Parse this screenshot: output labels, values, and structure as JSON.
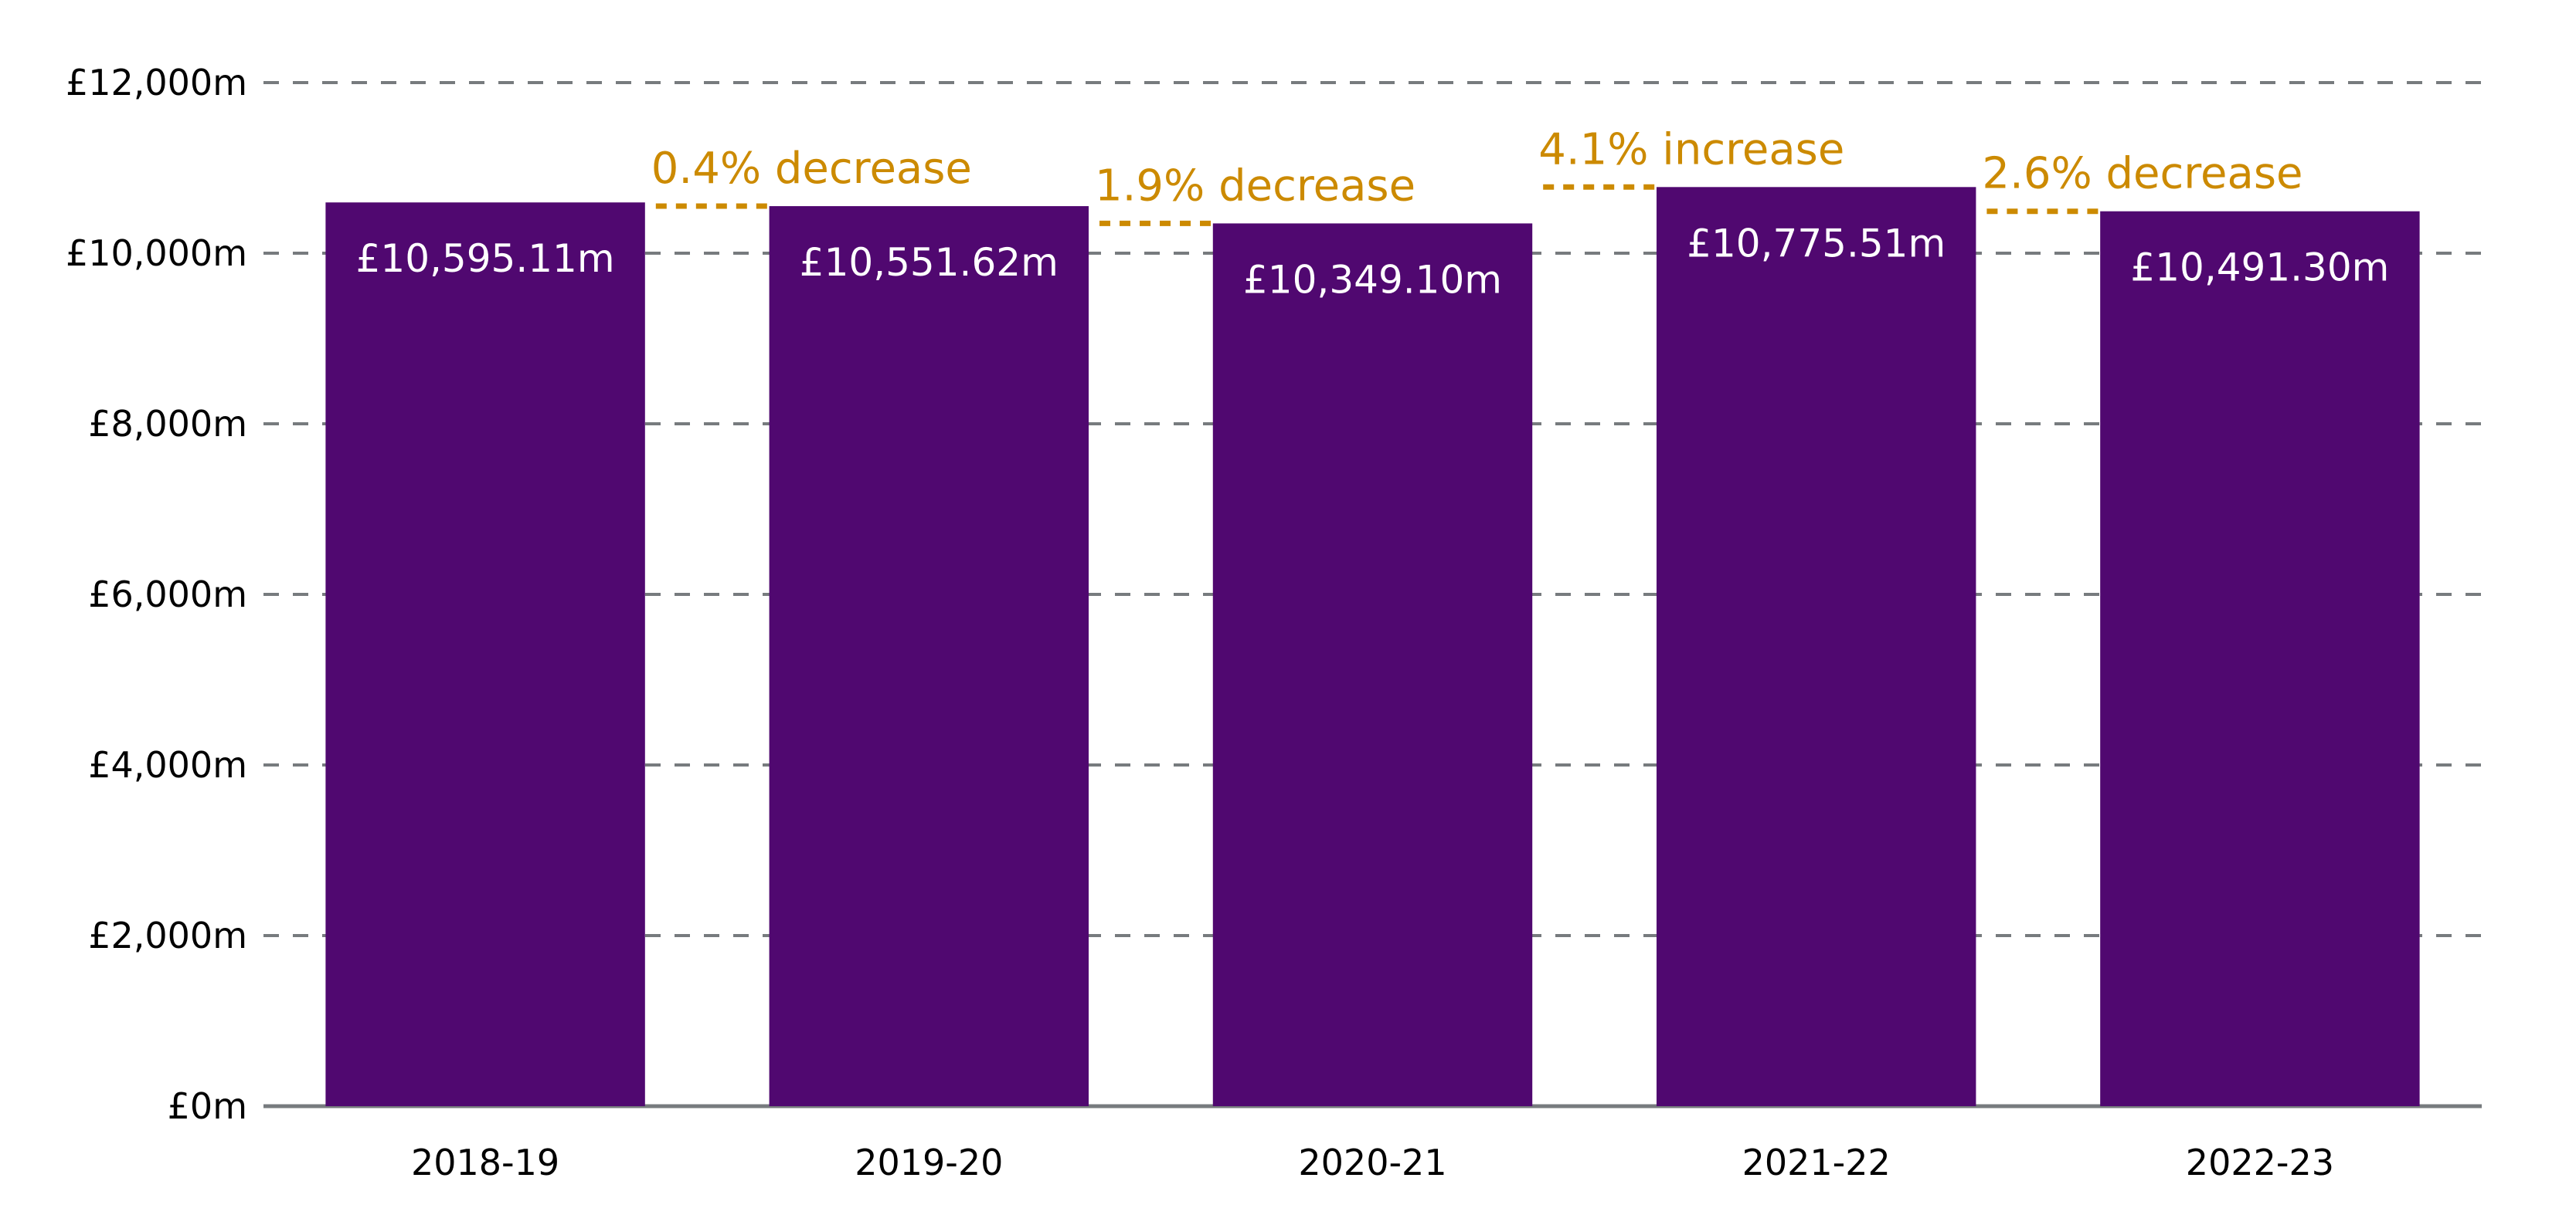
{
  "chart_data": {
    "type": "bar",
    "categories": [
      "2018-19",
      "2019-20",
      "2020-21",
      "2021-22",
      "2022-23"
    ],
    "values": [
      10595.11,
      10551.62,
      10349.1,
      10775.51,
      10491.3
    ],
    "value_labels": [
      "£10,595.11m",
      "£10,551.62m",
      "£10,349.10m",
      "£10,775.51m",
      "£10,491.30m"
    ],
    "annotations": [
      {
        "from": "2018-19",
        "to": "2019-20",
        "text": "0.4% decrease"
      },
      {
        "from": "2019-20",
        "to": "2020-21",
        "text": "1.9% decrease"
      },
      {
        "from": "2020-21",
        "to": "2021-22",
        "text": "4.1% increase"
      },
      {
        "from": "2021-22",
        "to": "2022-23",
        "text": "2.6% decrease"
      }
    ],
    "yticks": [
      0,
      2000,
      4000,
      6000,
      8000,
      10000,
      12000
    ],
    "ytick_labels": [
      "£0m",
      "£2,000m",
      "£4,000m",
      "£6,000m",
      "£8,000m",
      "£10,000m",
      "£12,000m"
    ],
    "ylim": [
      0,
      12000
    ],
    "title": "",
    "xlabel": "",
    "ylabel": "",
    "grid": "horizontal dashed",
    "colors": {
      "bar": "#500870",
      "annotation": "#CC8A00",
      "grid": "#777B7E",
      "axis": "#777B7E"
    }
  }
}
